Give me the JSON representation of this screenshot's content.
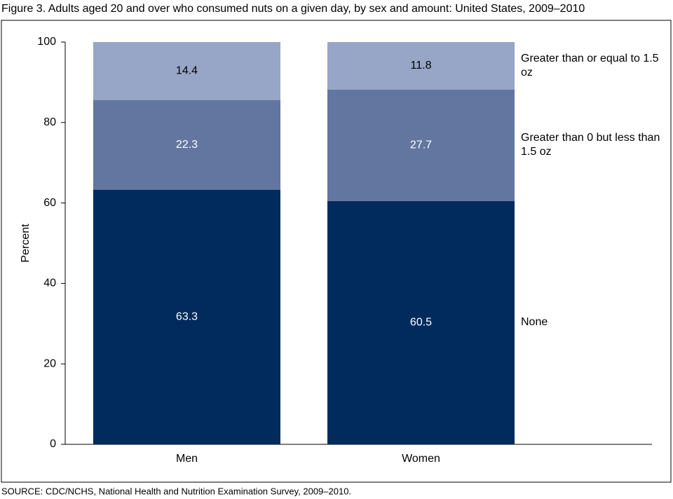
{
  "chart_data": {
    "type": "stacked_bar",
    "title": "Figure 3. Adults aged 20 and over who consumed nuts on a given day, by sex and amount: United States, 2009–2010",
    "source": "SOURCE: CDC/NCHS, National Health and Nutrition Examination Survey, 2009–2010.",
    "y_label": "Percent",
    "categories": [
      "Men",
      "Women"
    ],
    "series": [
      {
        "name": "None",
        "color": "#002b5c",
        "label_color": "#ffffff",
        "values": [
          63.3,
          60.5
        ]
      },
      {
        "name": "Greater than 0 but less than 1.5 oz",
        "color": "#63769f",
        "label_color": "#ffffff",
        "values": [
          22.3,
          27.7
        ]
      },
      {
        "name": "Greater than or equal to 1.5 oz",
        "color": "#97a5c6",
        "label_color": "#000000",
        "values": [
          14.4,
          11.8
        ]
      }
    ],
    "ylim": [
      0,
      100
    ],
    "yticks": [
      0,
      20,
      40,
      60,
      80,
      100
    ]
  }
}
